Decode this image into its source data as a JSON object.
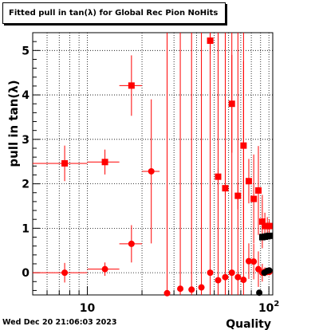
{
  "title": "Fitted pull in tan(λ) for Global Rec Pion NoHits",
  "footer": "Wed Dec 20 21:06:03 2023",
  "chart_data": {
    "type": "scatter",
    "title": "Fitted pull in tan(λ) for Global Rec Pion NoHits",
    "xlabel": "Quality",
    "ylabel": "pull in tan(λ)",
    "xscale": "log",
    "xlim": [
      5,
      105
    ],
    "ylim": [
      -0.5,
      5.4
    ],
    "grid": true,
    "x_ticklabels": [
      {
        "value": 10,
        "label": "10"
      },
      {
        "value": 100,
        "label": "10",
        "sup": "2"
      }
    ],
    "y_ticks": [
      0,
      1,
      2,
      3,
      4,
      5
    ],
    "series": [
      {
        "marker": "square",
        "color": "#ff0000",
        "points": [
          {
            "x": 7.5,
            "y": 2.46,
            "ey": 0.4,
            "xlo": 5.0,
            "xhi": 10.0
          },
          {
            "x": 12.5,
            "y": 2.49,
            "ey": 0.28,
            "xlo": 10.0,
            "xhi": 15.0
          },
          {
            "x": 17.5,
            "y": 4.21,
            "ey": 0.68,
            "xlo": 15.0,
            "xhi": 20.0
          },
          {
            "x": 47.5,
            "y": 5.22,
            "ey": 0.3
          },
          {
            "x": 52.5,
            "y": 2.16,
            "ey": 0.2
          },
          {
            "x": 57.5,
            "y": 1.9,
            "ey": 0.15
          },
          {
            "x": 62.5,
            "y": 3.8,
            "ey": 1.1
          },
          {
            "x": 67.5,
            "y": 1.73,
            "ey": 0.3
          },
          {
            "x": 72.5,
            "y": 2.86,
            "ey": 1.9
          },
          {
            "x": 77.5,
            "y": 2.06,
            "ey": 0.5
          },
          {
            "x": 82.5,
            "y": 1.66,
            "ey": 1.0
          },
          {
            "x": 87.5,
            "y": 1.85,
            "ey": 1.0
          },
          {
            "x": 92.0,
            "y": 1.15,
            "ey": 0.6
          },
          {
            "x": 95.0,
            "y": 1.05,
            "ey": 0.3
          },
          {
            "x": 98.0,
            "y": 1.05,
            "ey": 0.2
          },
          {
            "x": 100.5,
            "y": 1.05,
            "ey": 0.15
          }
        ]
      },
      {
        "marker": "circle",
        "color": "#ff0000",
        "points": [
          {
            "x": 7.5,
            "y": 0.0,
            "ey": 0.22,
            "xlo": 5.0,
            "xhi": 10.0
          },
          {
            "x": 12.5,
            "y": 0.08,
            "ey": 0.15,
            "xlo": 10.0,
            "xhi": 15.0
          },
          {
            "x": 17.5,
            "y": 0.65,
            "ey": 0.42,
            "xlo": 15.0,
            "xhi": 20.0
          },
          {
            "x": 22.5,
            "y": 2.28,
            "ey": 1.62,
            "xlo": 20.0,
            "xhi": 25.0
          },
          {
            "x": 27.5,
            "y": -0.46,
            "ey": 6.5
          },
          {
            "x": 32.5,
            "y": -0.36,
            "ey": 6.5
          },
          {
            "x": 37.5,
            "y": -0.38,
            "ey": 6.5
          },
          {
            "x": 42.5,
            "y": -0.33,
            "ey": 6.5
          },
          {
            "x": 47.5,
            "y": 0.0,
            "ey": 6.5
          },
          {
            "x": 52.5,
            "y": -0.17,
            "ey": 6.5
          },
          {
            "x": 57.5,
            "y": -0.1,
            "ey": 6.5
          },
          {
            "x": 62.5,
            "y": 0.0,
            "ey": 6.5
          },
          {
            "x": 67.5,
            "y": -0.1,
            "ey": 6.5
          },
          {
            "x": 72.5,
            "y": -0.16,
            "ey": 6.5
          },
          {
            "x": 77.5,
            "y": 0.26,
            "ey": 0.4
          },
          {
            "x": 82.5,
            "y": 0.25,
            "ey": 0.4
          },
          {
            "x": 87.5,
            "y": 0.08,
            "ey": 0.4
          },
          {
            "x": 92.0,
            "y": 0.0,
            "ey": 0.2
          },
          {
            "x": 95.0,
            "y": 0.02,
            "ey": 0.1
          },
          {
            "x": 98.0,
            "y": 0.02,
            "ey": 0.08
          },
          {
            "x": 100.5,
            "y": 0.02,
            "ey": 0.08
          }
        ]
      },
      {
        "marker": "square",
        "color": "#000000",
        "points": [
          {
            "x": 92.0,
            "y": 0.8
          },
          {
            "x": 95.0,
            "y": 0.81
          },
          {
            "x": 98.0,
            "y": 0.82
          },
          {
            "x": 100.5,
            "y": 0.83
          }
        ]
      },
      {
        "marker": "circle",
        "color": "#000000",
        "points": [
          {
            "x": 88.5,
            "y": -0.45
          },
          {
            "x": 94.5,
            "y": 0.0
          },
          {
            "x": 98.0,
            "y": 0.04
          },
          {
            "x": 100.5,
            "y": 0.05
          }
        ]
      }
    ]
  }
}
